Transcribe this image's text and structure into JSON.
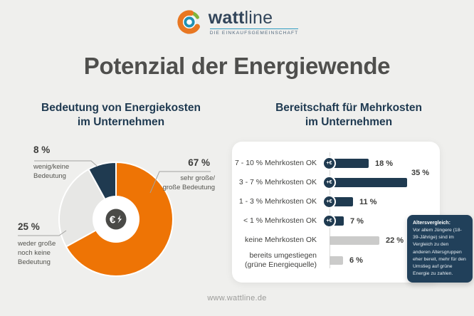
{
  "brand": {
    "wordmark_bold": "watt",
    "wordmark_light": "line",
    "tagline": "DIE EINKAUFSGEMEINSCHAFT"
  },
  "title": "Potenzial der Energiewende",
  "pie_section": {
    "heading_line1": "Bedeutung von Energiekosten",
    "heading_line2": "im Unternehmen",
    "labels": {
      "small": {
        "pct": "8 %",
        "line1": "wenig/keine",
        "line2": "Bedeutung"
      },
      "big": {
        "pct": "67 %",
        "line1": "sehr große/",
        "line2": "große Bedeutung"
      },
      "mid": {
        "pct": "25 %",
        "line1": "weder große",
        "line2": "noch keine",
        "line3": "Bedeutung"
      }
    }
  },
  "bar_section": {
    "heading_line1": "Bereitschaft für Mehrkosten",
    "heading_line2": "im Unternehmen",
    "icon_label": "+€",
    "tooltip": {
      "title": "Altersvergleich:",
      "body": "Vor allem Jüngere (18-39-Jährige) sind im Vergleich zu den anderen Altersgruppen eher bereit, mehr für den Umstieg auf grüne Energie zu zahlen."
    }
  },
  "footer": {
    "url": "www.wattline.de"
  },
  "colors": {
    "background": "#EFEFED",
    "orange": "#EE7405",
    "navy": "#1F3A50",
    "pie_grey": "#E7E7E5",
    "bar_grey": "#CBCBCA",
    "card": "#FFFFFF",
    "tooltip_bg": "#21405A",
    "title_grey": "#4F4F4D",
    "logo_orange": "#E87722",
    "logo_green": "#7FB439",
    "logo_teal": "#2191B4"
  },
  "chart_data": [
    {
      "type": "pie",
      "title": "Bedeutung von Energiekosten im Unternehmen",
      "donut": true,
      "start_angle_deg": 0,
      "direction": "clockwise",
      "labels": [
        "sehr große/große Bedeutung",
        "weder große noch keine Bedeutung",
        "wenig/keine Bedeutung"
      ],
      "values": [
        67,
        25,
        8
      ],
      "value_labels": [
        "67 %",
        "25 %",
        "8 %"
      ],
      "colors": [
        "#EE7405",
        "#E7E7E5",
        "#1F3A50"
      ],
      "center_icon": "euro-lightning"
    },
    {
      "type": "bar",
      "orientation": "horizontal",
      "title": "Bereitschaft für Mehrkosten im Unternehmen",
      "categories": [
        "7 - 10 % Mehrkosten OK",
        "3 - 7 % Mehrkosten OK",
        "1 - 3 % Mehrkosten OK",
        "< 1 % Mehrkosten OK",
        "keine Mehrkosten OK",
        "bereits umgestiegen\n(grüne Energiequelle)"
      ],
      "values": [
        18,
        35,
        11,
        7,
        22,
        6
      ],
      "value_labels": [
        "18 %",
        "35 %",
        "11 %",
        "7 %",
        "22 %",
        "6 %"
      ],
      "bar_colors": [
        "#1F3A50",
        "#1F3A50",
        "#1F3A50",
        "#1F3A50",
        "#CBCBCA",
        "#CBCBCA"
      ],
      "has_euro_icon": [
        true,
        true,
        true,
        true,
        false,
        false
      ],
      "xlim": [
        0,
        40
      ],
      "grid": false,
      "legend": false
    }
  ]
}
